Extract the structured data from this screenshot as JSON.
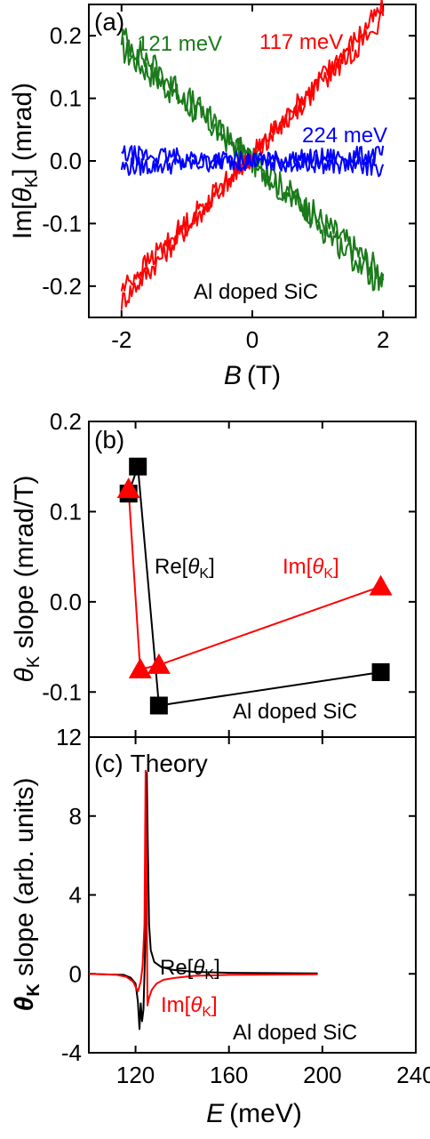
{
  "chart_data": [
    {
      "panel": "(a)",
      "type": "line",
      "xlabel_var": "B",
      "xlabel_unit": "(T)",
      "ylabel_pre": "Im[",
      "ylabel_var": "θ",
      "ylabel_sub": "K",
      "ylabel_post": "] (mrad)",
      "xlim": [
        -2.5,
        2.5
      ],
      "ylim": [
        -0.25,
        0.25
      ],
      "xticks": [
        -2,
        0,
        2
      ],
      "xtick_labels": [
        "-2",
        "0",
        "2"
      ],
      "yticks": [
        -0.2,
        -0.1,
        0.0,
        0.1,
        0.2
      ],
      "ytick_labels": [
        "-0.2",
        "-0.1",
        "0.0",
        "0.1",
        "0.2"
      ],
      "annotation": "Al doped SiC",
      "series": [
        {
          "name": "121 meV",
          "color": "#1a7a1a",
          "x": [
            -2,
            2
          ],
          "y": [
            0.19,
            -0.19
          ]
        },
        {
          "name": "117 meV",
          "color": "#ff0000",
          "x": [
            -2,
            2
          ],
          "y": [
            -0.215,
            0.235
          ]
        },
        {
          "name": "224 meV",
          "color": "#0000ff",
          "x": [
            -2,
            2
          ],
          "y": [
            0.0,
            0.0
          ]
        }
      ]
    },
    {
      "panel": "(b)",
      "type": "line",
      "ylabel_var": "θ",
      "ylabel_sub": "K",
      "ylabel_post": " slope (mrad/T)",
      "xlim": [
        100,
        240
      ],
      "ylim": [
        -0.15,
        0.2
      ],
      "yticks": [
        -0.1,
        0.0,
        0.1,
        0.2
      ],
      "ytick_labels": [
        "-0.1",
        "0.0",
        "0.1",
        "0.2"
      ],
      "xticks": [
        120,
        160,
        200,
        240
      ],
      "annotation": "Al doped SiC",
      "series": [
        {
          "name_pre": "Re[",
          "name_var": "θ",
          "name_sub": "K",
          "name_post": "]",
          "color": "#000000",
          "marker": "square",
          "x": [
            117,
            121,
            130,
            225
          ],
          "y": [
            0.12,
            0.15,
            -0.115,
            -0.078
          ]
        },
        {
          "name_pre": "Im[",
          "name_var": "θ",
          "name_sub": "K",
          "name_post": "]",
          "color": "#ff0000",
          "marker": "triangle",
          "x": [
            117,
            122,
            130,
            225
          ],
          "y": [
            0.125,
            -0.075,
            -0.07,
            0.017
          ]
        }
      ]
    },
    {
      "panel": "(c)",
      "title": "Theory",
      "type": "line",
      "xlabel_var": "E",
      "xlabel_unit": "(meV)",
      "ylabel_var": "θ",
      "ylabel_sub": "K",
      "ylabel_post": " slope (arb. units)",
      "xlim": [
        100,
        240
      ],
      "ylim": [
        -4,
        12
      ],
      "xticks": [
        120,
        160,
        200,
        240
      ],
      "xtick_labels": [
        "120",
        "160",
        "200",
        "240"
      ],
      "yticks": [
        -4,
        0,
        4,
        8,
        12
      ],
      "ytick_labels": [
        "-4",
        "0",
        "4",
        "8",
        "12"
      ],
      "annotation": "Al doped SiC",
      "series": [
        {
          "name_pre": "Re[",
          "name_var": "θ",
          "name_sub": "K",
          "name_post": "]",
          "color": "#000000",
          "x": [
            100,
            115,
            118,
            120,
            121,
            121.7,
            122.2,
            122.8,
            123.4,
            124,
            124.4,
            124.8,
            125.2,
            125.8,
            126.5,
            128,
            131,
            136,
            145,
            160,
            198
          ],
          "y": [
            0,
            -0.05,
            -0.2,
            -0.5,
            -1.4,
            -2.8,
            -1.5,
            -2.4,
            -1.8,
            0.8,
            3.5,
            10.2,
            7,
            2.5,
            1.2,
            0.6,
            0.35,
            0.2,
            0.1,
            0.05,
            0.02
          ]
        },
        {
          "name_pre": "Im[",
          "name_var": "θ",
          "name_sub": "K",
          "name_post": "]",
          "color": "#ff0000",
          "x": [
            100,
            112,
            116,
            119,
            121,
            122.2,
            123,
            123.8,
            124.3,
            124.7,
            125.1,
            125.8,
            127,
            129,
            132,
            137,
            145,
            160,
            198
          ],
          "y": [
            0,
            -0.05,
            -0.15,
            -0.4,
            -0.9,
            -0.4,
            0.4,
            2.5,
            10.3,
            5,
            -1.6,
            -1.2,
            -0.8,
            -0.5,
            -0.3,
            -0.2,
            -0.1,
            -0.05,
            -0.02
          ]
        }
      ]
    }
  ]
}
